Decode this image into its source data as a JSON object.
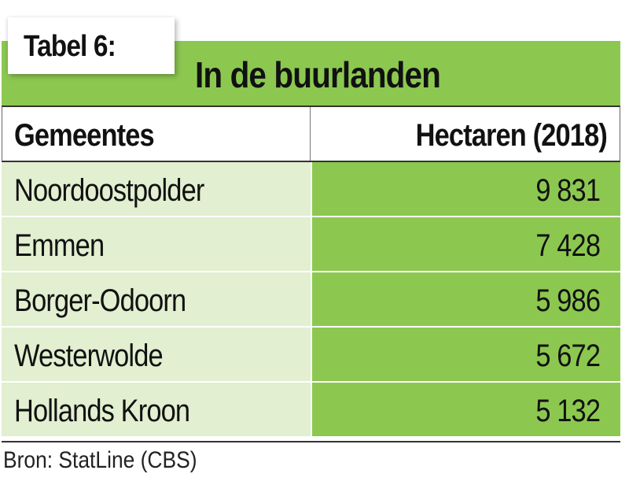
{
  "table": {
    "label": "Tabel 6:",
    "title": "In de buurlanden",
    "columns": [
      "Gemeentes",
      "Hectaren (2018)"
    ],
    "rows": [
      {
        "gemeente": "Noordoostpolder",
        "hectaren": "9 831"
      },
      {
        "gemeente": "Emmen",
        "hectaren": "7 428"
      },
      {
        "gemeente": "Borger-Odoorn",
        "hectaren": "5 986"
      },
      {
        "gemeente": "Westerwolde",
        "hectaren": "5 672"
      },
      {
        "gemeente": "Hollands Kroon",
        "hectaren": "5 132"
      }
    ],
    "source": "Bron: StatLine (CBS)"
  },
  "colors": {
    "green": "#8cc850",
    "light_green": "#e2efd0"
  }
}
